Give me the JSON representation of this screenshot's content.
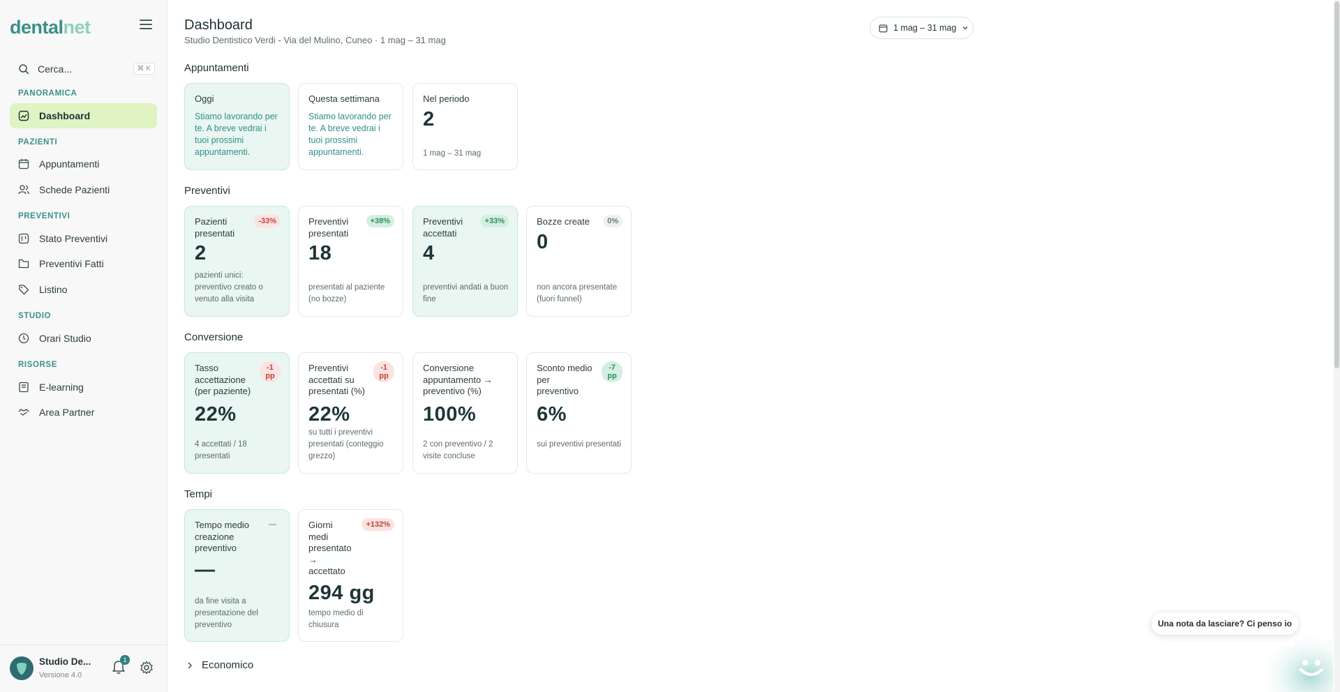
{
  "brand": {
    "part1": "dental",
    "part2": "net"
  },
  "search": {
    "label": "Cerca...",
    "shortcut": "⌘ K"
  },
  "nav": {
    "sections": [
      {
        "label": "PANORAMICA"
      },
      {
        "label": "PAZIENTI"
      },
      {
        "label": "PREVENTIVI"
      },
      {
        "label": "STUDIO"
      },
      {
        "label": "RISORSE"
      }
    ],
    "items": [
      {
        "label": "Dashboard",
        "icon": "dashboard-icon",
        "active": true
      },
      {
        "label": "Appuntamenti",
        "icon": "calendar-icon"
      },
      {
        "label": "Schede Pazienti",
        "icon": "users-icon"
      },
      {
        "label": "Stato Preventivi",
        "icon": "kanban-icon"
      },
      {
        "label": "Preventivi Fatti",
        "icon": "folder-icon"
      },
      {
        "label": "Listino",
        "icon": "tag-icon"
      },
      {
        "label": "Orari Studio",
        "icon": "clock-icon"
      },
      {
        "label": "E-learning",
        "icon": "book-icon"
      },
      {
        "label": "Area Partner",
        "icon": "handshake-icon"
      }
    ]
  },
  "footer": {
    "studio_name": "Studio De...",
    "version": "Versione 4.0",
    "notifications": "1"
  },
  "header": {
    "title": "Dashboard",
    "subtitle": "Studio Dentistico Verdi - Via del Mulino, Cuneo · 1 mag – 31 mag",
    "date_range": "1 mag – 31 mag"
  },
  "appuntamenti": {
    "title": "Appuntamenti",
    "cards": [
      {
        "label": "Oggi",
        "message": "Stiamo lavorando per te. A breve vedrai i tuoi prossimi appuntamenti."
      },
      {
        "label": "Questa settimana",
        "message": "Stiamo lavorando per te. A breve vedrai i tuoi prossimi appuntamenti."
      },
      {
        "label": "Nel periodo",
        "value": "2",
        "desc": "1 mag – 31 mag"
      }
    ]
  },
  "preventivi": {
    "title": "Preventivi",
    "cards": [
      {
        "label": "Pazienti presentati",
        "value": "2",
        "delta": "-33%",
        "desc": "pazienti unici: preventivo creato o venuto alla visita"
      },
      {
        "label": "Preventivi presentati",
        "value": "18",
        "delta": "+38%",
        "desc": "presentati al paziente (no bozze)"
      },
      {
        "label": "Preventivi accettati",
        "value": "4",
        "delta": "+33%",
        "desc": "preventivi andati a buon fine"
      },
      {
        "label": "Bozze create",
        "value": "0",
        "delta": "0%",
        "desc": "non ancora presentate (fuori funnel)"
      }
    ]
  },
  "conversione": {
    "title": "Conversione",
    "cards": [
      {
        "label": "Tasso accettazione (per paziente)",
        "value": "22%",
        "delta": "-1 pp",
        "desc": "4 accettati / 18 presentati"
      },
      {
        "label": "Preventivi accettati su presentati (%)",
        "value": "22%",
        "delta": "-1 pp",
        "desc": "su tutti i preventivi presentati (conteggio grezzo)"
      },
      {
        "label": "Conversione appuntamento → preventivo (%)",
        "value": "100%",
        "desc": "2 con preventivo / 2 visite concluse"
      },
      {
        "label": "Sconto medio per preventivo",
        "value": "6%",
        "delta": "-7 pp",
        "desc": "sui preventivi presentati"
      }
    ]
  },
  "tempi": {
    "title": "Tempi",
    "cards": [
      {
        "label": "Tempo medio creazione preventivo",
        "value": "—",
        "delta": "—",
        "desc": "da fine visita a presentazione del preventivo"
      },
      {
        "label": "Giorni medi presentato → accettato",
        "value": "294 gg",
        "delta": "+132%",
        "desc": "tempo medio di chiusura"
      }
    ]
  },
  "economico": {
    "title": "Economico"
  },
  "chat": {
    "prompt": "Una nota da lasciare? Ci penso io"
  },
  "colors": {
    "accent": "#3b8f8c",
    "active_nav": "#dff3c3",
    "card_green": "#e9f6f1",
    "negative": "#c0453c",
    "positive": "#2f8f5c"
  }
}
